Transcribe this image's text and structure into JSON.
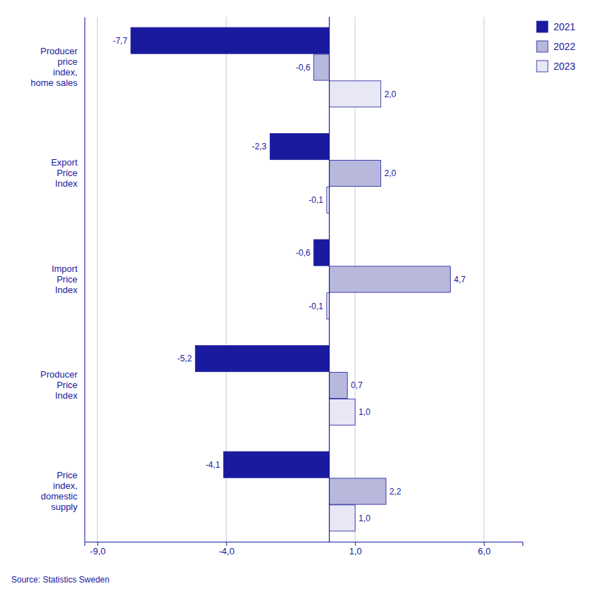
{
  "chart_data": {
    "type": "bar",
    "orientation": "horizontal",
    "categories": [
      "Price\nindex,\ndomestic\nsupply",
      "Producer\nPrice\nIndex",
      "Import\nPrice\nIndex",
      "Export\nPrice\nIndex",
      "Producer\nprice\nindex,\nhome sales"
    ],
    "series": [
      {
        "name": "2021",
        "color": "#1A1A9E",
        "values": [
          -4.1,
          -5.2,
          -0.6,
          -2.3,
          -7.7
        ],
        "value_labels": [
          "-4,1",
          "-5,2",
          "-0,6",
          "-2,3",
          "-7,7"
        ]
      },
      {
        "name": "2022",
        "color": "#B8B8DC",
        "values": [
          2.2,
          0.7,
          4.7,
          2.0,
          -0.6
        ],
        "value_labels": [
          "2,2",
          "0,7",
          "4,7",
          "2,0",
          "-0,6"
        ]
      },
      {
        "name": "2023",
        "color": "#E8E8F5",
        "values": [
          1.0,
          1.0,
          -0.1,
          -0.1,
          2.0
        ],
        "value_labels": [
          "1,0",
          "1,0",
          "-0,1",
          "-0,1",
          "2,0"
        ]
      }
    ],
    "xlim": [
      -9.5,
      7.5
    ],
    "xticks": [
      {
        "value": -9.0,
        "label": "-9,0"
      },
      {
        "value": -4.0,
        "label": "-4,0"
      },
      {
        "value": 1.0,
        "label": "1,0"
      },
      {
        "value": 6.0,
        "label": "6,0"
      }
    ],
    "grid": true,
    "legend": "right",
    "data_labels": true,
    "annotations": [
      "Source: Statistics Sweden"
    ]
  }
}
